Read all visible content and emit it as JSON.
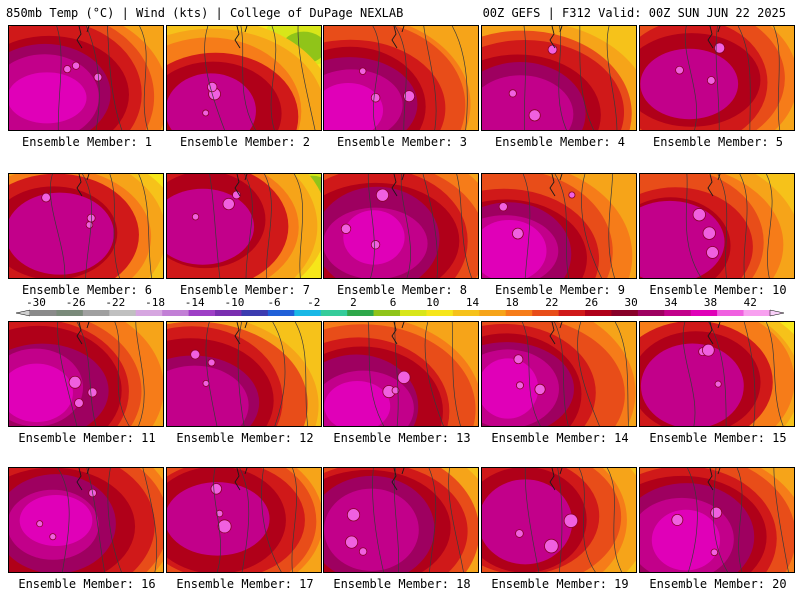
{
  "header": {
    "left": "850mb Temp (°C) | Wind (kts) | College of DuPage NEXLAB",
    "right": "00Z GEFS | F312 Valid: 00Z SUN JUN 22 2025"
  },
  "caption_prefix": "Ensemble Member: ",
  "members": [
    {
      "id": "1",
      "style": "hot"
    },
    {
      "id": "2",
      "style": "cool"
    },
    {
      "id": "3",
      "style": "hot"
    },
    {
      "id": "4",
      "style": "mixed"
    },
    {
      "id": "5",
      "style": "warm"
    },
    {
      "id": "6",
      "style": "cool"
    },
    {
      "id": "7",
      "style": "cool"
    },
    {
      "id": "8",
      "style": "hot"
    },
    {
      "id": "9",
      "style": "hot"
    },
    {
      "id": "10",
      "style": "warm"
    },
    {
      "id": "11",
      "style": "hot"
    },
    {
      "id": "12",
      "style": "mixed"
    },
    {
      "id": "13",
      "style": "hot"
    },
    {
      "id": "14",
      "style": "hot"
    },
    {
      "id": "15",
      "style": "cool"
    },
    {
      "id": "16",
      "style": "hot"
    },
    {
      "id": "17",
      "style": "warm"
    },
    {
      "id": "18",
      "style": "mixed"
    },
    {
      "id": "19",
      "style": "warm"
    },
    {
      "id": "20",
      "style": "hot"
    }
  ],
  "colorbar": {
    "ticks": [
      "-30",
      "-26",
      "-22",
      "-18",
      "-14",
      "-10",
      "-6",
      "-2",
      "2",
      "6",
      "10",
      "14",
      "18",
      "22",
      "26",
      "30",
      "34",
      "38",
      "42"
    ],
    "colors": [
      "#8a8a8a",
      "#7a8a7a",
      "#a0a0a0",
      "#c0c0c0",
      "#d6a6e0",
      "#c27fd6",
      "#9e3fc6",
      "#7a2fb0",
      "#3c3cb0",
      "#2060d8",
      "#19b8e6",
      "#35cc9a",
      "#2fa84a",
      "#90c419",
      "#d8e619",
      "#f6e61a",
      "#f6c21a",
      "#f6a419",
      "#f67c19",
      "#e84d19",
      "#d01919",
      "#b00019",
      "#880028",
      "#9e0060",
      "#c2008a",
      "#e000b8",
      "#f060e0",
      "#f8a0f0"
    ],
    "color_names": [
      "gray",
      "green",
      "teal",
      "cyan",
      "yellow",
      "orange",
      "red",
      "maroon",
      "magenta",
      "pink"
    ]
  },
  "palette": {
    "border": "#000000",
    "contour": "#3a3a3a",
    "state_line": "#1a1a1a"
  }
}
